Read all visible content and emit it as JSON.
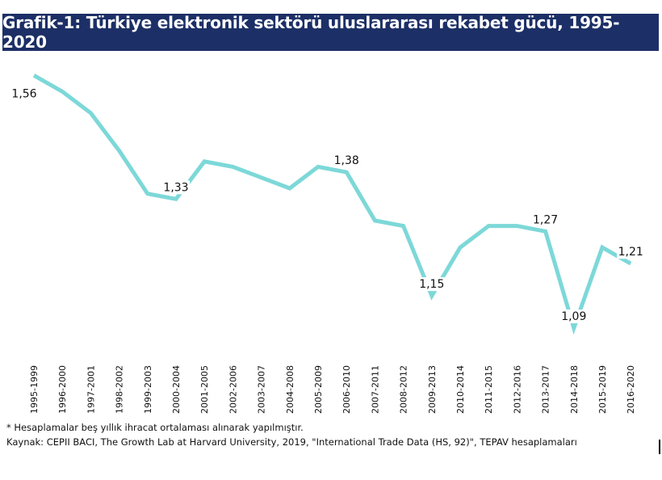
{
  "title": "Grafik-1: Türkiye elektronik sektörü uluslararası rekabet gücü, 1995-2020",
  "footnote": "* Hesaplamalar beş yıllık ihracat ortalaması alınarak yapılmıştır.",
  "source": "Kaynak: CEPII BACI, The Growth Lab at Harvard University, 2019, \"International Trade Data (HS, 92)\", TEPAV hesaplamaları",
  "chart_data": {
    "type": "line",
    "categories": [
      "1995-1999",
      "1996-2000",
      "1997-2001",
      "1998-2002",
      "1999-2003",
      "2000-2004",
      "2001-2005",
      "2002-2006",
      "2003-2007",
      "2004-2008",
      "2005-2009",
      "2006-2010",
      "2007-2011",
      "2008-2012",
      "2009-2013",
      "2010-2014",
      "2011-2015",
      "2012-2016",
      "2013-2017",
      "2014-2018",
      "2015-2019",
      "2016-2020"
    ],
    "series": [
      {
        "values": [
          1.56,
          1.53,
          1.49,
          1.42,
          1.34,
          1.33,
          1.4,
          1.39,
          1.37,
          1.35,
          1.39,
          1.38,
          1.29,
          1.28,
          1.15,
          1.24,
          1.28,
          1.28,
          1.27,
          1.09,
          1.24,
          1.21
        ]
      }
    ],
    "data_labels": [
      {
        "index": 0,
        "text": "1,56"
      },
      {
        "index": 5,
        "text": "1,33"
      },
      {
        "index": 11,
        "text": "1,38"
      },
      {
        "index": 14,
        "text": "1,15"
      },
      {
        "index": 18,
        "text": "1,27"
      },
      {
        "index": 19,
        "text": "1,09"
      },
      {
        "index": 21,
        "text": "1,21"
      }
    ],
    "line_color": "#7dd8d8",
    "ylim": [
      1.06,
      1.58
    ],
    "grid": false,
    "legend": "none"
  }
}
